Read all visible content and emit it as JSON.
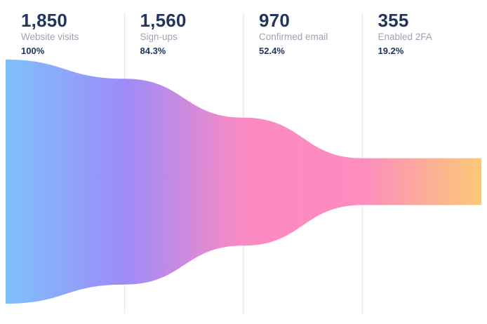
{
  "chart_data": {
    "type": "funnel",
    "title": "",
    "stages": [
      {
        "label": "Website visits",
        "value": 1850,
        "value_formatted": "1,850",
        "percent": "100%"
      },
      {
        "label": "Sign-ups",
        "value": 1560,
        "value_formatted": "1,560",
        "percent": "84.3%"
      },
      {
        "label": "Confirmed email",
        "value": 970,
        "value_formatted": "970",
        "percent": "52.4%"
      },
      {
        "label": "Enabled 2FA",
        "value": 355,
        "value_formatted": "355",
        "percent": "19.2%"
      }
    ],
    "max_value": 1850,
    "gradient": {
      "direction": "horizontal",
      "stops": [
        {
          "offset": 0,
          "color": "#7EC1FB"
        },
        {
          "offset": 0.25,
          "color": "#9D8BF8"
        },
        {
          "offset": 0.5,
          "color": "#FB8AC3"
        },
        {
          "offset": 0.75,
          "color": "#FC8DBE"
        },
        {
          "offset": 1,
          "color": "#FBC977"
        }
      ]
    },
    "layout_hints": {
      "columns": 4,
      "legend": "none",
      "grid": "vertical-dividers",
      "divider_color": "#E9E9EB",
      "background": "#FFFFFF"
    }
  },
  "colors": {
    "value_text": "#22355C",
    "label_text": "#9CA3AF",
    "percent_text": "#22355C"
  }
}
